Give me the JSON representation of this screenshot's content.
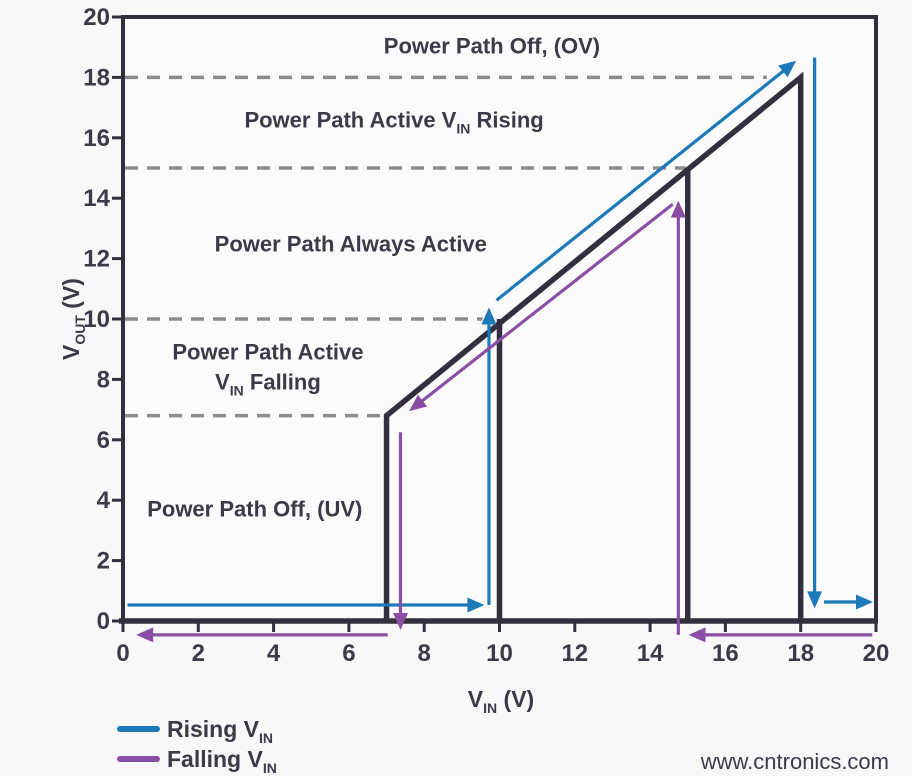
{
  "watermark": "www.cntronics.com",
  "chart_data": {
    "type": "line",
    "title": "",
    "description": "Power path output voltage versus input voltage hysteresis (UV/OV lockout) transfer diagram",
    "xlabel": {
      "pre": "V",
      "sub": "IN",
      "post": " (V)"
    },
    "ylabel": {
      "pre": "V",
      "sub": "OUT",
      "post": " (V)"
    },
    "xlim": [
      0,
      20
    ],
    "ylim": [
      0,
      20
    ],
    "xticks": [
      0,
      2,
      4,
      6,
      8,
      10,
      12,
      14,
      16,
      18,
      20
    ],
    "yticks": [
      0,
      2,
      4,
      6,
      8,
      10,
      12,
      14,
      16,
      18,
      20
    ],
    "grid": "off",
    "legend_position": "bottom-left",
    "colors": {
      "trace": "#32303e",
      "rising": "#1c7ab9",
      "falling": "#8a4fa4",
      "dashed": "#8c8c8c",
      "text": "#3b3a46",
      "watermark": "#b6dfac",
      "plot_bg": "#fbfbfc"
    },
    "thresholds": {
      "uv_turn_off_falling": 7,
      "uv_turn_on_rising": 10,
      "ov_recover_falling": 15,
      "ov_turn_off_rising": 18
    },
    "reference_lines": [
      {
        "y": 18,
        "x_end": 17.1
      },
      {
        "y": 15,
        "x_end": 14.95
      },
      {
        "y": 10,
        "x_end": 9.55
      },
      {
        "y": 6.8,
        "x_end": 6.95
      }
    ],
    "transfer_curve": {
      "outline": [
        [
          7,
          0
        ],
        [
          7,
          6.8
        ],
        [
          18,
          18
        ],
        [
          18,
          0
        ]
      ],
      "internal_verticals": [
        [
          [
            10,
            10
          ],
          [
            10,
            0
          ]
        ],
        [
          [
            15,
            15
          ],
          [
            15,
            0
          ]
        ]
      ]
    },
    "series": [
      {
        "id": "rising",
        "name": {
          "pre": "Rising V",
          "sub": "IN"
        },
        "color_key": "rising",
        "arrow_segments": [
          [
            [
              0.12,
              0.53
            ],
            [
              9.6,
              0.53
            ]
          ],
          [
            [
              9.72,
              0.53
            ],
            [
              9.72,
              10.38
            ]
          ],
          [
            [
              9.92,
              10.62
            ],
            [
              17.88,
              18.55
            ]
          ],
          [
            [
              18.37,
              18.66
            ],
            [
              18.37,
              0.42
            ]
          ],
          [
            [
              18.62,
              0.63
            ],
            [
              19.92,
              0.63
            ]
          ]
        ]
      },
      {
        "id": "falling",
        "name": {
          "pre": "Falling V",
          "sub": "IN"
        },
        "color_key": "falling",
        "arrow_segments": [
          [
            [
              19.9,
              -0.46
            ],
            [
              15.02,
              -0.46
            ]
          ],
          [
            [
              14.75,
              -0.46
            ],
            [
              14.75,
              13.92
            ]
          ],
          [
            [
              14.6,
              13.8
            ],
            [
              7.6,
              6.95
            ]
          ],
          [
            [
              7.37,
              6.25
            ],
            [
              7.37,
              -0.3
            ]
          ],
          [
            [
              7.03,
              -0.46
            ],
            [
              0.35,
              -0.46
            ]
          ]
        ]
      }
    ],
    "annotations": [
      {
        "x": 9.8,
        "y": 19.05,
        "lines": [
          [
            {
              "t": "Power Path Off, (OV)"
            }
          ]
        ]
      },
      {
        "x": 7.2,
        "y": 16.6,
        "lines": [
          [
            {
              "t": "Power Path Active V"
            },
            {
              "t": "IN",
              "sub": true
            },
            {
              "t": " Rising"
            }
          ]
        ]
      },
      {
        "x": 6.05,
        "y": 12.5,
        "lines": [
          [
            {
              "t": "Power Path Always Active"
            }
          ]
        ]
      },
      {
        "x": 3.85,
        "y": 8.92,
        "lines": [
          [
            {
              "t": "Power Path Active"
            }
          ],
          [
            {
              "t": "V"
            },
            {
              "t": "IN",
              "sub": true
            },
            {
              "t": " Falling"
            }
          ]
        ]
      },
      {
        "x": 3.5,
        "y": 3.72,
        "lines": [
          [
            {
              "t": "Power Path Off, (UV)"
            }
          ]
        ]
      }
    ]
  }
}
